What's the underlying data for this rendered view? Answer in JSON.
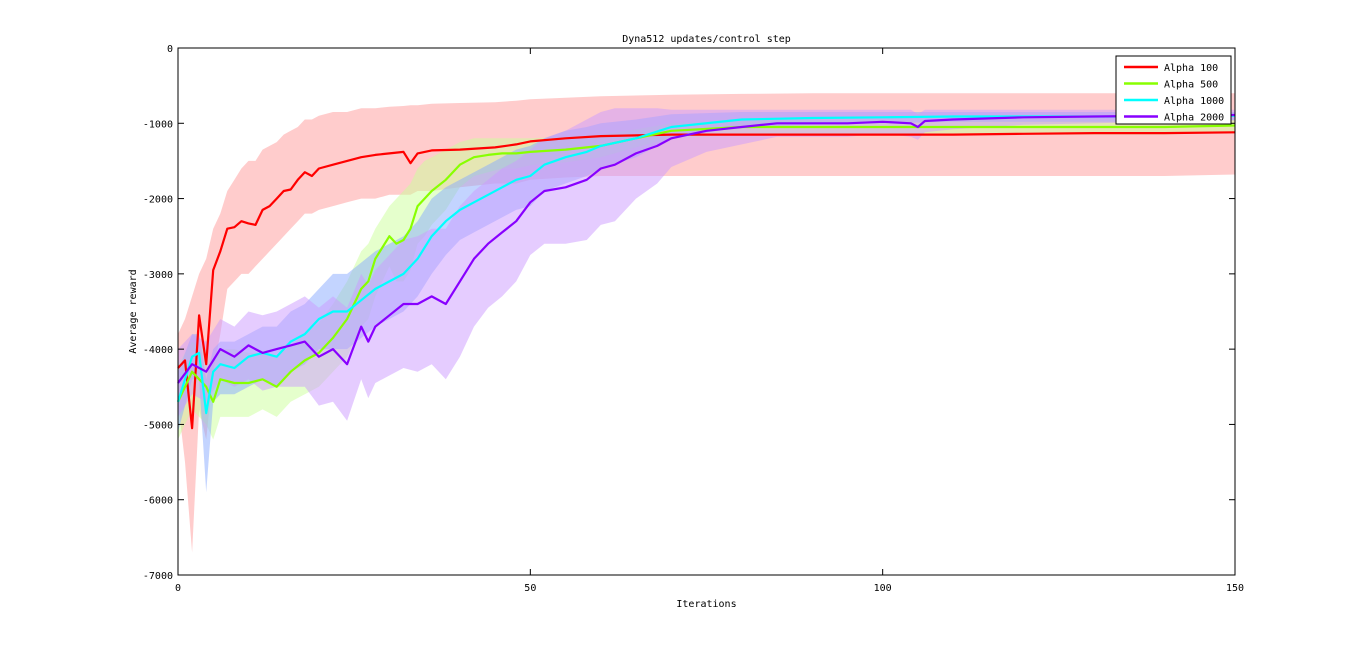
{
  "chart_data": {
    "type": "line",
    "title": "Dyna512 updates/control step",
    "xlabel": "Iterations",
    "ylabel": "Average reward",
    "xlim": [
      0,
      150
    ],
    "ylim": [
      -7000,
      0
    ],
    "xticks": [
      0,
      50,
      100,
      150
    ],
    "yticks": [
      0,
      -1000,
      -2000,
      -3000,
      -4000,
      -5000,
      -6000,
      -7000
    ],
    "xtick_labels": [
      "0",
      "50",
      "100",
      "150"
    ],
    "ytick_labels": [
      "0",
      "-1000",
      "-2000",
      "-3000",
      "-4000",
      "-5000",
      "-6000",
      "-7000"
    ],
    "grid": false,
    "legend_position": "top-right",
    "shaded_band": "variability band around each series",
    "series": [
      {
        "name": "Alpha 100",
        "color": "#ff0000",
        "band_color": "#ff9999",
        "x": [
          0,
          1,
          2,
          3,
          4,
          5,
          6,
          7,
          8,
          9,
          10,
          11,
          12,
          13,
          14,
          15,
          16,
          17,
          18,
          19,
          20,
          22,
          24,
          26,
          28,
          30,
          32,
          33,
          34,
          36,
          40,
          45,
          48,
          50,
          55,
          60,
          70,
          80,
          90,
          100,
          110,
          120,
          130,
          140,
          150
        ],
        "values": [
          -4250,
          -4150,
          -5050,
          -3550,
          -4200,
          -2950,
          -2700,
          -2400,
          -2380,
          -2300,
          -2330,
          -2350,
          -2150,
          -2100,
          -2000,
          -1900,
          -1880,
          -1750,
          -1650,
          -1700,
          -1600,
          -1550,
          -1500,
          -1450,
          -1420,
          -1400,
          -1380,
          -1530,
          -1400,
          -1360,
          -1350,
          -1320,
          -1280,
          -1240,
          -1200,
          -1170,
          -1150,
          -1150,
          -1150,
          -1150,
          -1150,
          -1140,
          -1130,
          -1130,
          -1120
        ],
        "band_upper": [
          -3800,
          -3600,
          -3300,
          -3000,
          -2800,
          -2400,
          -2200,
          -1900,
          -1750,
          -1600,
          -1500,
          -1500,
          -1350,
          -1300,
          -1250,
          -1150,
          -1100,
          -1050,
          -950,
          -950,
          -900,
          -850,
          -850,
          -800,
          -800,
          -780,
          -770,
          -760,
          -760,
          -740,
          -730,
          -720,
          -700,
          -680,
          -660,
          -640,
          -620,
          -610,
          -600,
          -600,
          -600,
          -600,
          -600,
          -600,
          -600
        ],
        "band_lower": [
          -4700,
          -5500,
          -6700,
          -4800,
          -5200,
          -4300,
          -3800,
          -3200,
          -3100,
          -3000,
          -3000,
          -2900,
          -2800,
          -2700,
          -2600,
          -2500,
          -2400,
          -2300,
          -2200,
          -2200,
          -2150,
          -2100,
          -2050,
          -2000,
          -2000,
          -1950,
          -1950,
          -1950,
          -1900,
          -1900,
          -1850,
          -1800,
          -1800,
          -1750,
          -1720,
          -1700,
          -1700,
          -1700,
          -1700,
          -1700,
          -1700,
          -1700,
          -1700,
          -1700,
          -1680
        ]
      },
      {
        "name": "Alpha 500",
        "color": "#88ff00",
        "band_color": "#ccff99",
        "x": [
          0,
          2,
          4,
          5,
          6,
          8,
          10,
          12,
          14,
          16,
          18,
          20,
          22,
          24,
          26,
          27,
          28,
          30,
          31,
          32,
          33,
          34,
          35,
          36,
          38,
          40,
          42,
          44,
          46,
          48,
          50,
          55,
          60,
          65,
          70,
          80,
          90,
          100,
          110,
          120,
          130,
          140,
          150
        ],
        "values": [
          -4700,
          -4300,
          -4500,
          -4700,
          -4400,
          -4450,
          -4450,
          -4400,
          -4500,
          -4300,
          -4150,
          -4050,
          -3850,
          -3600,
          -3200,
          -3100,
          -2800,
          -2500,
          -2600,
          -2550,
          -2400,
          -2100,
          -2000,
          -1900,
          -1750,
          -1550,
          -1450,
          -1420,
          -1400,
          -1400,
          -1380,
          -1350,
          -1300,
          -1200,
          -1100,
          -1050,
          -1050,
          -1050,
          -1050,
          -1050,
          -1050,
          -1050,
          -1030
        ],
        "band_upper": [
          -4200,
          -3900,
          -4000,
          -4200,
          -4000,
          -4000,
          -4050,
          -4050,
          -4100,
          -3950,
          -3800,
          -3650,
          -3400,
          -3100,
          -2700,
          -2600,
          -2400,
          -2100,
          -2000,
          -1900,
          -1800,
          -1600,
          -1500,
          -1450,
          -1350,
          -1250,
          -1200,
          -1200,
          -1200,
          -1200,
          -1200,
          -1180,
          -1150,
          -1080,
          -1000,
          -950,
          -950,
          -950,
          -950,
          -950,
          -950,
          -950,
          -950
        ],
        "band_lower": [
          -5200,
          -4800,
          -5000,
          -5200,
          -4900,
          -4900,
          -4900,
          -4800,
          -4900,
          -4700,
          -4600,
          -4500,
          -4300,
          -4100,
          -3700,
          -3600,
          -3300,
          -2900,
          -3100,
          -3100,
          -2950,
          -2600,
          -2500,
          -2350,
          -2150,
          -1850,
          -1700,
          -1650,
          -1600,
          -1600,
          -1560,
          -1520,
          -1450,
          -1320,
          -1200,
          -1150,
          -1150,
          -1150,
          -1150,
          -1150,
          -1150,
          -1150,
          -1120
        ]
      },
      {
        "name": "Alpha 1000",
        "color": "#00ffff",
        "band_color": "#88aaff",
        "x": [
          0,
          2,
          3,
          4,
          5,
          6,
          8,
          10,
          12,
          14,
          16,
          18,
          20,
          22,
          24,
          26,
          28,
          30,
          32,
          34,
          36,
          38,
          40,
          42,
          44,
          46,
          48,
          50,
          52,
          55,
          58,
          60,
          65,
          70,
          80,
          90,
          100,
          110,
          120,
          130,
          140,
          150
        ],
        "values": [
          -4700,
          -4100,
          -4050,
          -4850,
          -4300,
          -4200,
          -4250,
          -4100,
          -4050,
          -4100,
          -3900,
          -3800,
          -3600,
          -3500,
          -3500,
          -3350,
          -3200,
          -3100,
          -3000,
          -2800,
          -2500,
          -2300,
          -2150,
          -2050,
          -1950,
          -1850,
          -1750,
          -1700,
          -1550,
          -1450,
          -1380,
          -1300,
          -1200,
          -1050,
          -950,
          -930,
          -920,
          -910,
          -910,
          -910,
          -910,
          -900
        ],
        "band_upper": [
          -4300,
          -3800,
          -3800,
          -4400,
          -4000,
          -3900,
          -3900,
          -3800,
          -3700,
          -3700,
          -3500,
          -3400,
          -3200,
          -3000,
          -3000,
          -2850,
          -2700,
          -2600,
          -2500,
          -2300,
          -2000,
          -1850,
          -1750,
          -1650,
          -1550,
          -1450,
          -1350,
          -1300,
          -1200,
          -1100,
          -1050,
          -1000,
          -950,
          -880,
          -850,
          -850,
          -850,
          -850,
          -850,
          -850,
          -850,
          -850
        ],
        "band_lower": [
          -5100,
          -4400,
          -4400,
          -5900,
          -4700,
          -4600,
          -4600,
          -4500,
          -4400,
          -4500,
          -4300,
          -4200,
          -4000,
          -4000,
          -4000,
          -3850,
          -3700,
          -3600,
          -3500,
          -3300,
          -3000,
          -2750,
          -2550,
          -2450,
          -2350,
          -2250,
          -2150,
          -2100,
          -1900,
          -1800,
          -1700,
          -1600,
          -1450,
          -1200,
          -1050,
          -1020,
          -1000,
          -980,
          -980,
          -980,
          -980,
          -960
        ]
      },
      {
        "name": "Alpha 2000",
        "color": "#8800ff",
        "band_color": "#cc99ff",
        "x": [
          0,
          2,
          4,
          6,
          8,
          10,
          12,
          14,
          16,
          18,
          20,
          22,
          24,
          26,
          27,
          28,
          30,
          32,
          34,
          36,
          38,
          40,
          42,
          44,
          46,
          48,
          50,
          52,
          55,
          58,
          60,
          62,
          65,
          68,
          70,
          75,
          80,
          85,
          90,
          95,
          100,
          104,
          105,
          106,
          110,
          120,
          130,
          140,
          150
        ],
        "values": [
          -4450,
          -4200,
          -4300,
          -4000,
          -4100,
          -3950,
          -4050,
          -4000,
          -3950,
          -3900,
          -4100,
          -4000,
          -4200,
          -3700,
          -3900,
          -3700,
          -3550,
          -3400,
          -3400,
          -3300,
          -3400,
          -3100,
          -2800,
          -2600,
          -2450,
          -2300,
          -2050,
          -1900,
          -1850,
          -1750,
          -1600,
          -1550,
          -1400,
          -1300,
          -1200,
          -1100,
          -1050,
          -1000,
          -1000,
          -1000,
          -980,
          -1000,
          -1050,
          -970,
          -950,
          -920,
          -910,
          -900,
          -890
        ],
        "band_upper": [
          -4000,
          -3800,
          -3900,
          -3600,
          -3700,
          -3500,
          -3550,
          -3500,
          -3400,
          -3300,
          -3450,
          -3300,
          -3450,
          -3000,
          -3150,
          -2950,
          -2750,
          -2550,
          -2500,
          -2400,
          -2400,
          -2100,
          -1900,
          -1750,
          -1600,
          -1500,
          -1350,
          -1200,
          -1100,
          -950,
          -850,
          -800,
          -800,
          -800,
          -820,
          -820,
          -820,
          -820,
          -820,
          -820,
          -820,
          -820,
          -880,
          -820,
          -820,
          -820,
          -820,
          -820,
          -820
        ],
        "band_lower": [
          -4900,
          -4600,
          -4700,
          -4400,
          -4500,
          -4400,
          -4550,
          -4500,
          -4500,
          -4500,
          -4750,
          -4700,
          -4950,
          -4400,
          -4650,
          -4450,
          -4350,
          -4250,
          -4300,
          -4200,
          -4400,
          -4100,
          -3700,
          -3450,
          -3300,
          -3100,
          -2750,
          -2600,
          -2600,
          -2550,
          -2350,
          -2300,
          -2000,
          -1800,
          -1580,
          -1380,
          -1280,
          -1180,
          -1180,
          -1180,
          -1140,
          -1180,
          -1220,
          -1120,
          -1080,
          -1020,
          -1000,
          -980,
          -960
        ]
      }
    ]
  }
}
